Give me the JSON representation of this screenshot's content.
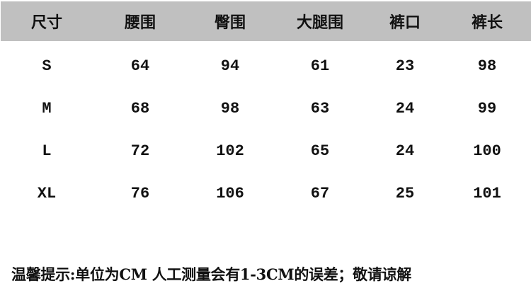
{
  "table": {
    "headers": [
      "尺寸",
      "腰围",
      "臀围",
      "大腿围",
      "裤口",
      "裤长"
    ],
    "rows": [
      [
        "S",
        "64",
        "94",
        "61",
        "23",
        "98"
      ],
      [
        "M",
        "68",
        "98",
        "63",
        "24",
        "99"
      ],
      [
        "L",
        "72",
        "102",
        "65",
        "24",
        "100"
      ],
      [
        "XL",
        "76",
        "106",
        "67",
        "25",
        "101"
      ]
    ]
  },
  "note": "温馨提示:单位为CM 人工测量会有1-3CM的误差；敬请谅解",
  "colors": {
    "header_background": "#c0c0c0",
    "text": "#111111"
  }
}
